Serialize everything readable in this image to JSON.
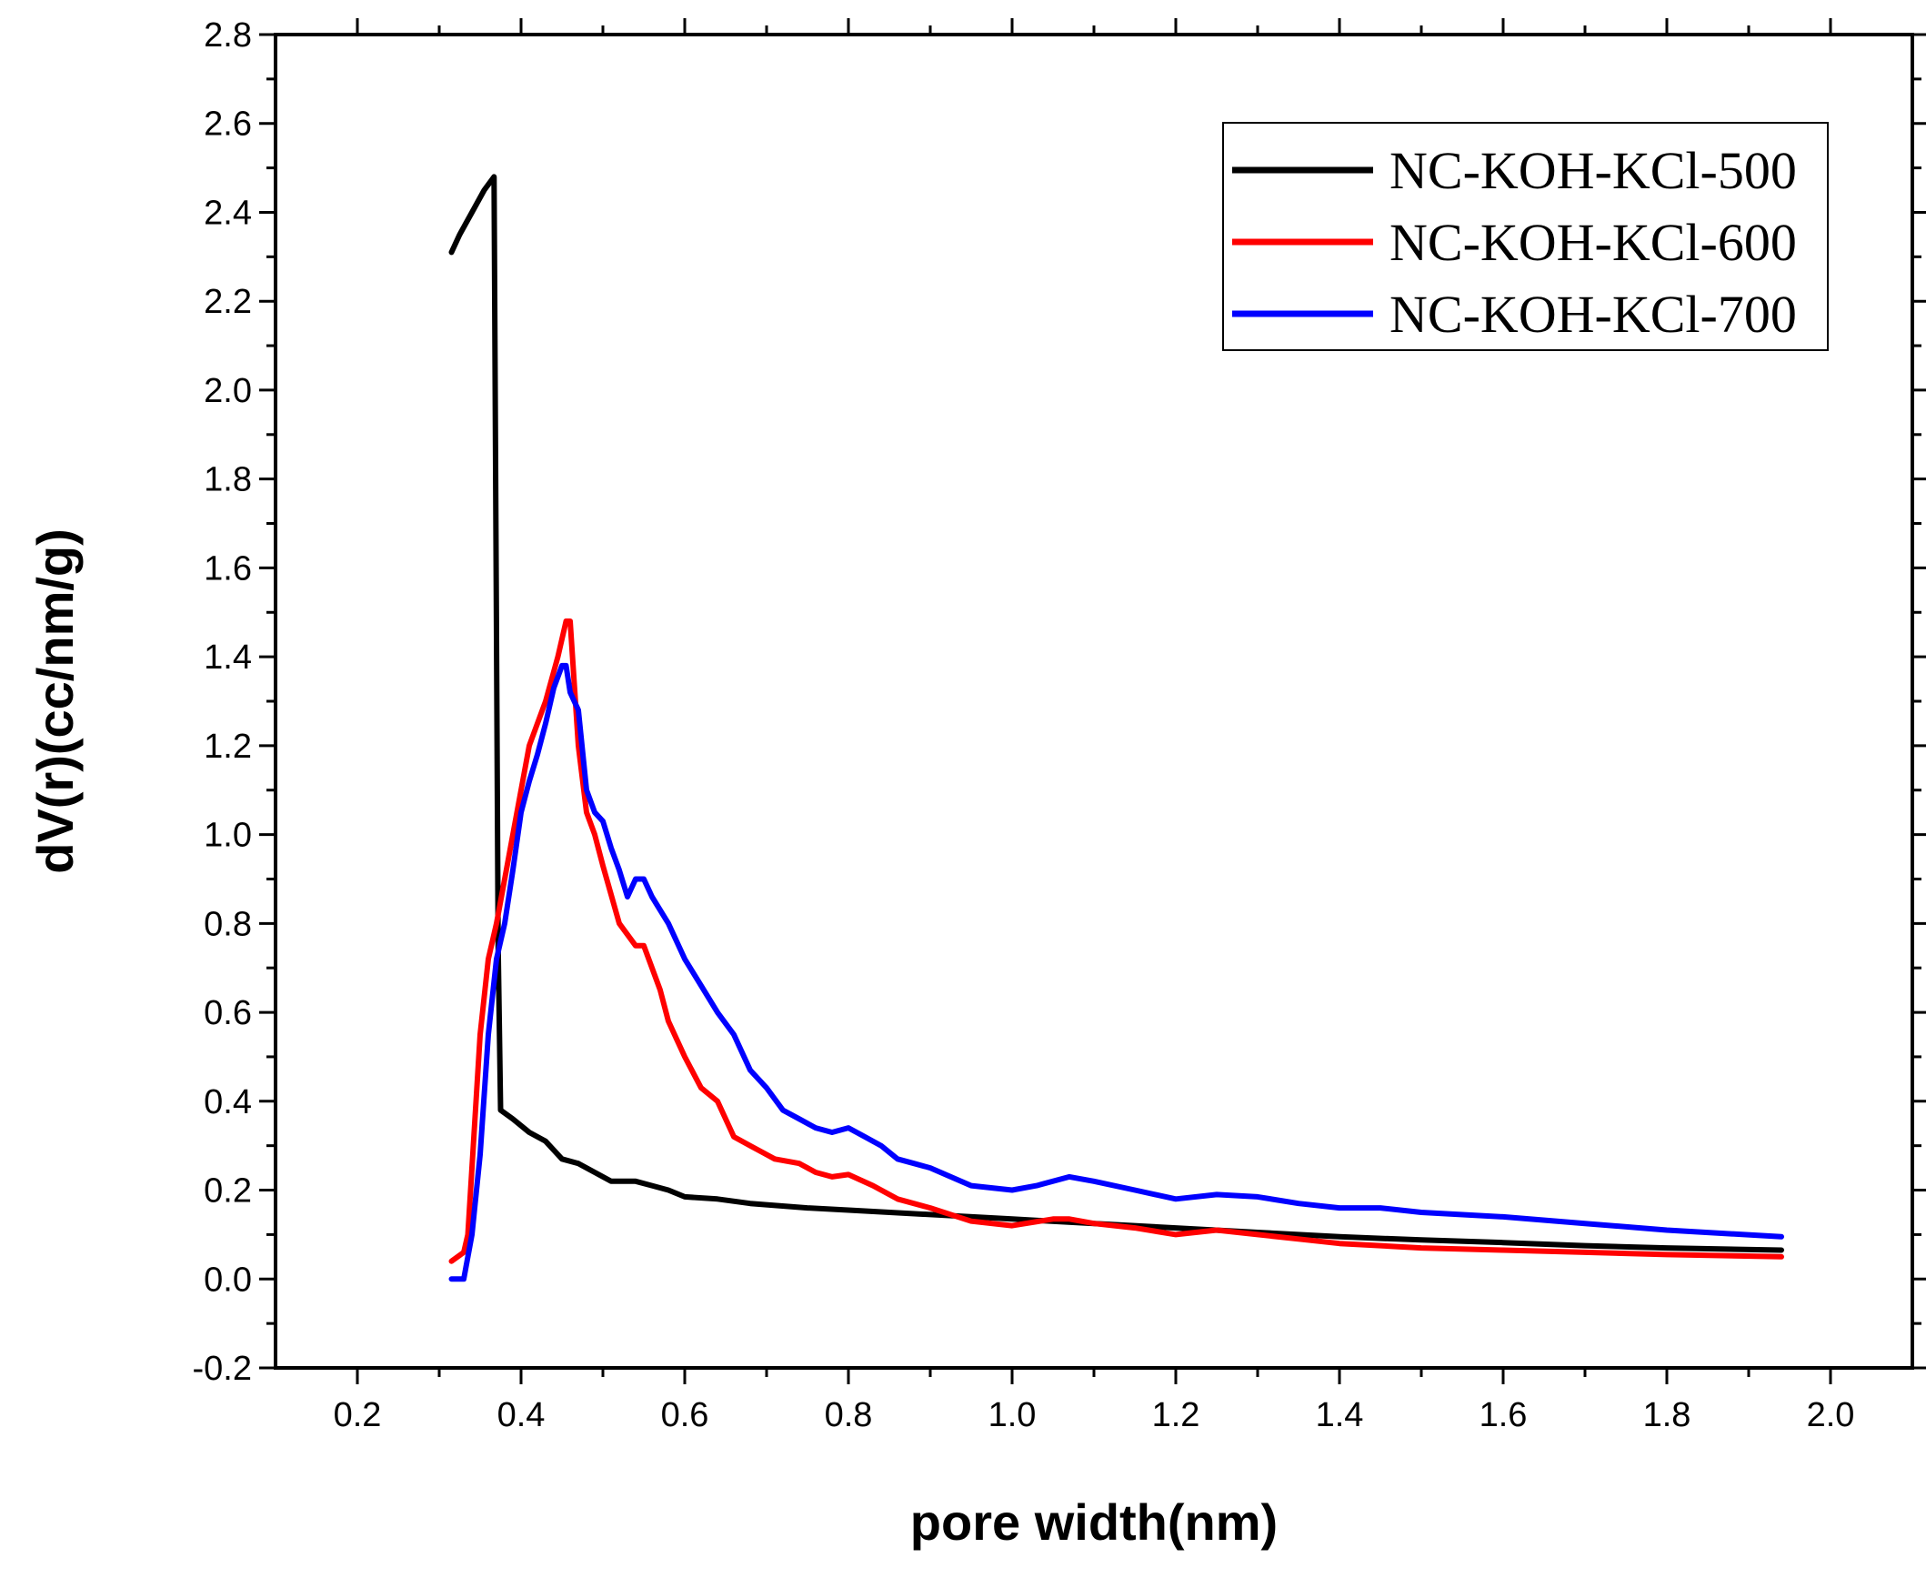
{
  "chart_data": {
    "type": "line",
    "title": "",
    "xlabel": "pore width(nm)",
    "ylabel": "dV(r)(cc/nm/g)",
    "xlim": [
      0.1,
      2.1
    ],
    "ylim": [
      -0.2,
      2.8
    ],
    "xticks": [
      0.2,
      0.4,
      0.6,
      0.8,
      1.0,
      1.2,
      1.4,
      1.6,
      1.8,
      2.0
    ],
    "xtick_labels": [
      "0.2",
      "0.4",
      "0.6",
      "0.8",
      "1.0",
      "1.2",
      "1.4",
      "1.6",
      "1.8",
      "2.0"
    ],
    "yticks": [
      -0.2,
      0.0,
      0.2,
      0.4,
      0.6,
      0.8,
      1.0,
      1.2,
      1.4,
      1.6,
      1.8,
      2.0,
      2.2,
      2.4,
      2.6,
      2.8
    ],
    "ytick_labels": [
      "-0.2",
      "0.0",
      "0.2",
      "0.4",
      "0.6",
      "0.8",
      "1.0",
      "1.2",
      "1.4",
      "1.6",
      "1.8",
      "2.0",
      "2.2",
      "2.4",
      "2.6",
      "2.8"
    ],
    "grid": false,
    "legend_position": "top-right",
    "series": [
      {
        "name": "NC-KOH-KCl-500",
        "color": "#000000",
        "x": [
          0.315,
          0.325,
          0.34,
          0.355,
          0.367,
          0.372,
          0.375,
          0.39,
          0.41,
          0.43,
          0.45,
          0.47,
          0.49,
          0.51,
          0.54,
          0.56,
          0.58,
          0.6,
          0.64,
          0.68,
          0.75,
          0.8,
          0.9,
          1.0,
          1.1,
          1.2,
          1.3,
          1.4,
          1.5,
          1.6,
          1.7,
          1.8,
          1.94
        ],
        "y": [
          2.31,
          2.35,
          2.4,
          2.45,
          2.48,
          0.75,
          0.38,
          0.36,
          0.33,
          0.31,
          0.27,
          0.26,
          0.24,
          0.22,
          0.22,
          0.21,
          0.2,
          0.185,
          0.18,
          0.17,
          0.16,
          0.155,
          0.145,
          0.135,
          0.125,
          0.115,
          0.105,
          0.095,
          0.088,
          0.082,
          0.075,
          0.07,
          0.065
        ]
      },
      {
        "name": "NC-KOH-KCl-600",
        "color": "#ff0000",
        "x": [
          0.315,
          0.33,
          0.335,
          0.34,
          0.35,
          0.36,
          0.37,
          0.38,
          0.39,
          0.41,
          0.43,
          0.445,
          0.455,
          0.46,
          0.47,
          0.48,
          0.49,
          0.5,
          0.52,
          0.54,
          0.55,
          0.57,
          0.58,
          0.6,
          0.62,
          0.64,
          0.66,
          0.68,
          0.71,
          0.74,
          0.76,
          0.78,
          0.8,
          0.83,
          0.86,
          0.9,
          0.95,
          1.0,
          1.05,
          1.07,
          1.1,
          1.15,
          1.2,
          1.25,
          1.3,
          1.35,
          1.4,
          1.5,
          1.6,
          1.7,
          1.8,
          1.94
        ],
        "y": [
          0.04,
          0.06,
          0.1,
          0.25,
          0.55,
          0.72,
          0.8,
          0.9,
          1.0,
          1.2,
          1.3,
          1.4,
          1.48,
          1.48,
          1.2,
          1.05,
          1.0,
          0.93,
          0.8,
          0.75,
          0.75,
          0.65,
          0.58,
          0.5,
          0.43,
          0.4,
          0.32,
          0.3,
          0.27,
          0.26,
          0.24,
          0.23,
          0.235,
          0.21,
          0.18,
          0.16,
          0.13,
          0.12,
          0.135,
          0.135,
          0.125,
          0.115,
          0.1,
          0.11,
          0.1,
          0.09,
          0.08,
          0.07,
          0.065,
          0.06,
          0.055,
          0.05
        ]
      },
      {
        "name": "NC-KOH-KCl-700",
        "color": "#0000ff",
        "x": [
          0.315,
          0.33,
          0.34,
          0.35,
          0.36,
          0.37,
          0.38,
          0.39,
          0.4,
          0.41,
          0.42,
          0.43,
          0.44,
          0.45,
          0.455,
          0.46,
          0.47,
          0.48,
          0.49,
          0.5,
          0.51,
          0.52,
          0.53,
          0.54,
          0.55,
          0.56,
          0.58,
          0.6,
          0.62,
          0.64,
          0.66,
          0.68,
          0.7,
          0.72,
          0.74,
          0.76,
          0.78,
          0.8,
          0.82,
          0.84,
          0.86,
          0.88,
          0.9,
          0.95,
          1.0,
          1.03,
          1.07,
          1.1,
          1.15,
          1.2,
          1.25,
          1.3,
          1.35,
          1.4,
          1.45,
          1.5,
          1.6,
          1.7,
          1.8,
          1.94
        ],
        "y": [
          0.0,
          0.0,
          0.1,
          0.28,
          0.55,
          0.72,
          0.8,
          0.92,
          1.05,
          1.12,
          1.18,
          1.25,
          1.33,
          1.38,
          1.38,
          1.32,
          1.28,
          1.1,
          1.05,
          1.03,
          0.97,
          0.92,
          0.86,
          0.9,
          0.9,
          0.86,
          0.8,
          0.72,
          0.66,
          0.6,
          0.55,
          0.47,
          0.43,
          0.38,
          0.36,
          0.34,
          0.33,
          0.34,
          0.32,
          0.3,
          0.27,
          0.26,
          0.25,
          0.21,
          0.2,
          0.21,
          0.23,
          0.22,
          0.2,
          0.18,
          0.19,
          0.185,
          0.17,
          0.16,
          0.16,
          0.15,
          0.14,
          0.125,
          0.11,
          0.095
        ]
      }
    ]
  }
}
